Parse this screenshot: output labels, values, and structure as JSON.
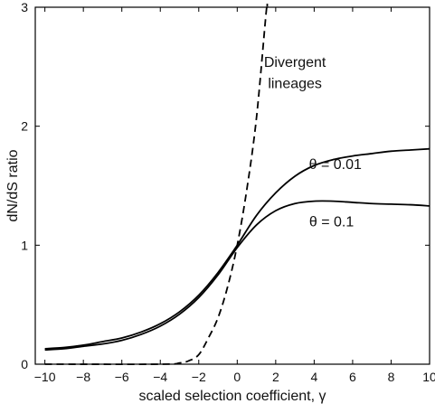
{
  "chart_data": {
    "type": "line",
    "xlabel": "scaled selection coefficient, γ",
    "ylabel": "dN/dS ratio",
    "xlim": [
      -10.5,
      10
    ],
    "ylim": [
      0,
      3
    ],
    "x_ticks": [
      -10,
      -8,
      -6,
      -4,
      -2,
      0,
      2,
      4,
      6,
      8,
      10
    ],
    "y_ticks": [
      0,
      1,
      2,
      3
    ],
    "grid": false,
    "legend": "none",
    "series": [
      {
        "name": "θ = 0.01",
        "style": "solid",
        "points": [
          [
            -10,
            0.13
          ],
          [
            -9,
            0.14
          ],
          [
            -8,
            0.16
          ],
          [
            -7,
            0.19
          ],
          [
            -6,
            0.22
          ],
          [
            -5,
            0.27
          ],
          [
            -4,
            0.34
          ],
          [
            -3,
            0.44
          ],
          [
            -2,
            0.58
          ],
          [
            -1,
            0.77
          ],
          [
            0,
            1.0
          ],
          [
            1,
            1.25
          ],
          [
            2,
            1.44
          ],
          [
            3,
            1.58
          ],
          [
            4,
            1.67
          ],
          [
            5,
            1.72
          ],
          [
            6,
            1.75
          ],
          [
            7,
            1.77
          ],
          [
            8,
            1.79
          ],
          [
            9,
            1.8
          ],
          [
            10,
            1.81
          ]
        ]
      },
      {
        "name": "θ = 0.1",
        "style": "solid",
        "points": [
          [
            -10,
            0.12
          ],
          [
            -9,
            0.13
          ],
          [
            -8,
            0.15
          ],
          [
            -7,
            0.17
          ],
          [
            -6,
            0.2
          ],
          [
            -5,
            0.25
          ],
          [
            -4,
            0.32
          ],
          [
            -3,
            0.42
          ],
          [
            -2,
            0.56
          ],
          [
            -1,
            0.75
          ],
          [
            0,
            0.98
          ],
          [
            1,
            1.17
          ],
          [
            2,
            1.29
          ],
          [
            3,
            1.35
          ],
          [
            4,
            1.37
          ],
          [
            5,
            1.37
          ],
          [
            6,
            1.36
          ],
          [
            7,
            1.35
          ],
          [
            8,
            1.345
          ],
          [
            9,
            1.34
          ],
          [
            10,
            1.33
          ]
        ]
      },
      {
        "name": "Divergent lineages",
        "style": "dashed",
        "points": [
          [
            -10,
            0.0
          ],
          [
            -4,
            0.0
          ],
          [
            -3,
            0.01
          ],
          [
            -2.5,
            0.03
          ],
          [
            -2,
            0.08
          ],
          [
            -1.5,
            0.22
          ],
          [
            -1,
            0.39
          ],
          [
            -0.5,
            0.65
          ],
          [
            0,
            1.0
          ],
          [
            0.5,
            1.47
          ],
          [
            1,
            2.07
          ],
          [
            1.5,
            2.95
          ],
          [
            1.56,
            3.0
          ]
        ]
      }
    ],
    "annotations": [
      {
        "text": "Divergent",
        "x": 3.0,
        "y": 2.5
      },
      {
        "text": "lineages",
        "x": 3.0,
        "y": 2.32
      },
      {
        "text": "θ = 0.01",
        "x": 5.1,
        "y": 1.64
      },
      {
        "text": "θ = 0.1",
        "x": 4.9,
        "y": 1.16
      }
    ]
  }
}
